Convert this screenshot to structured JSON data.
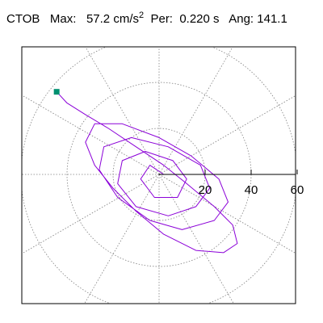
{
  "header": {
    "station": "CTOB",
    "max_label": "Max:",
    "max_value": "57.2",
    "max_unit": "cm/s",
    "max_unit_exp": "2",
    "per_label": "Per:",
    "per_value": "0.220 s",
    "ang_label": "Ang:",
    "ang_value": "141.1"
  },
  "chart_data": {
    "type": "scatter",
    "title": "CTOB   Max:   57.2 cm/s2  Per:  0.220 s   Ang: 141.1",
    "xlabel": "",
    "ylabel": "",
    "radial_ticks": [
      "20",
      "40",
      "60"
    ],
    "radial_tick_values": [
      20,
      40,
      60
    ],
    "axis_range": [
      -60,
      60
    ],
    "grid": "polar-dotted",
    "grid_ring_values": [
      20,
      40,
      60
    ],
    "grid_spoke_step_deg": 30,
    "trace_color": "#8b00d8",
    "marker_color": "#009070",
    "max_point": {
      "x": -44.5,
      "y": 35.9,
      "magnitude": 57.2,
      "angle_deg": 141.1
    },
    "series": [
      {
        "values": [
          {
            "x": -44.5,
            "y": 35.9
          },
          {
            "x": -40,
            "y": 31
          },
          {
            "x": -32,
            "y": 26
          },
          {
            "x": -22,
            "y": 20
          },
          {
            "x": -10,
            "y": 12
          },
          {
            "x": 2,
            "y": 4
          },
          {
            "x": 12,
            "y": -4
          },
          {
            "x": 24,
            "y": -14
          },
          {
            "x": 32,
            "y": -22
          },
          {
            "x": 34,
            "y": -30
          },
          {
            "x": 28,
            "y": -34
          },
          {
            "x": 16,
            "y": -33
          },
          {
            "x": 2,
            "y": -26
          },
          {
            "x": -10,
            "y": -16
          },
          {
            "x": -20,
            "y": -6
          },
          {
            "x": -28,
            "y": 4
          },
          {
            "x": -32,
            "y": 14
          },
          {
            "x": -28,
            "y": 22
          },
          {
            "x": -16,
            "y": 22
          },
          {
            "x": 0,
            "y": 16
          },
          {
            "x": 14,
            "y": 8
          },
          {
            "x": 26,
            "y": -2
          },
          {
            "x": 30,
            "y": -12
          },
          {
            "x": 24,
            "y": -20
          },
          {
            "x": 10,
            "y": -24
          },
          {
            "x": -4,
            "y": -20
          },
          {
            "x": -18,
            "y": -10
          },
          {
            "x": -26,
            "y": 2
          },
          {
            "x": -24,
            "y": 12
          },
          {
            "x": -12,
            "y": 16
          },
          {
            "x": 4,
            "y": 12
          },
          {
            "x": 18,
            "y": 4
          },
          {
            "x": 22,
            "y": -6
          },
          {
            "x": 16,
            "y": -14
          },
          {
            "x": 4,
            "y": -18
          },
          {
            "x": -10,
            "y": -14
          },
          {
            "x": -18,
            "y": -4
          },
          {
            "x": -16,
            "y": 6
          },
          {
            "x": -6,
            "y": 10
          },
          {
            "x": 6,
            "y": 6
          },
          {
            "x": 12,
            "y": -2
          },
          {
            "x": 8,
            "y": -10
          },
          {
            "x": -2,
            "y": -10
          },
          {
            "x": -8,
            "y": -2
          },
          {
            "x": -4,
            "y": 4
          },
          {
            "x": 2,
            "y": 0
          }
        ]
      }
    ]
  }
}
